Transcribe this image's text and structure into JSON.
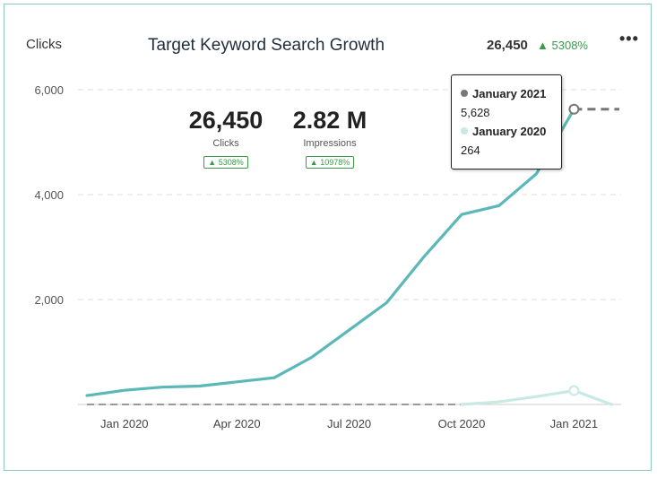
{
  "header": {
    "metric_label": "Clicks",
    "title": "Target Keyword Search Growth",
    "total": "26,450",
    "change": "5308%",
    "menu_icon": "more-horizontal-icon"
  },
  "kpis": [
    {
      "value": "26,450",
      "label": "Clicks",
      "change": "5308%"
    },
    {
      "value": "2.82 M",
      "label": "Impressions",
      "change": "10978%"
    }
  ],
  "tooltip": {
    "current_label": "January 2021",
    "current_value": "5,628",
    "previous_label": "January 2020",
    "previous_value": "264"
  },
  "colors": {
    "current": "#5ab8b8",
    "previous": "#c8e9e4",
    "dashed": "#999999",
    "positive": "#3a9a4a"
  },
  "chart_data": {
    "type": "line",
    "ylim": [
      0,
      6000
    ],
    "yticks": [
      2000,
      4000,
      6000
    ],
    "ytick_labels": [
      "2,000",
      "4,000",
      "6,000"
    ],
    "x_tick_labels": [
      "Jan 2020",
      "Apr 2020",
      "Jul 2020",
      "Oct 2020",
      "Jan 2021"
    ],
    "x_tick_index": [
      1,
      4,
      7,
      10,
      13
    ],
    "series": [
      {
        "values": [
          170,
          270,
          330,
          350,
          430,
          510,
          900,
          1420,
          1940,
          2820,
          3620,
          3790,
          4400,
          5628
        ],
        "x_index": [
          0,
          1,
          2,
          3,
          4,
          5,
          6,
          7,
          8,
          9,
          10,
          11,
          12,
          13
        ]
      },
      {
        "values": [
          0,
          50,
          150,
          264,
          0
        ],
        "x_index": [
          10,
          11,
          12,
          13,
          14
        ]
      }
    ],
    "grid": true,
    "legend": "none"
  }
}
